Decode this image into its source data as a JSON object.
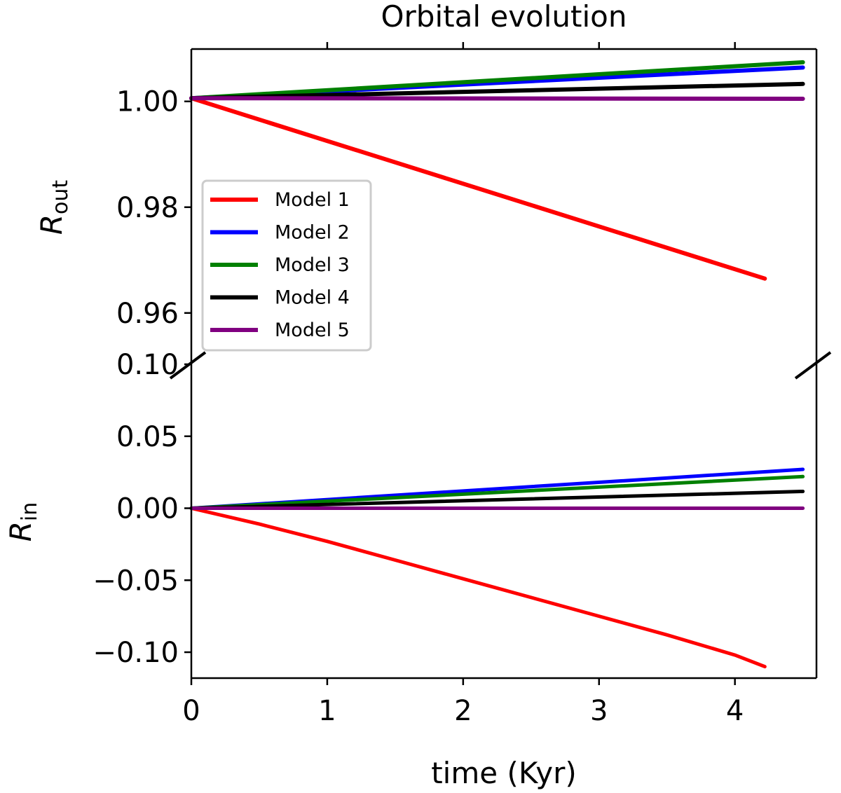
{
  "chart_data": {
    "type": "line",
    "title": "Orbital evolution",
    "xlabel": "time (Kyr)",
    "xlim": [
      0,
      4.6
    ],
    "xticks": [
      0,
      1,
      2,
      3,
      4
    ],
    "xtick_labels": [
      "0",
      "1",
      "2",
      "3",
      "4"
    ],
    "panels": [
      {
        "name": "top",
        "ylabel": "R",
        "ylabel_sub": "out",
        "ylim": [
          0.9503,
          1.0099
        ],
        "yticks": [
          1.0,
          0.98,
          0.96
        ],
        "ytick_labels": [
          "1.00",
          "0.98",
          "0.96"
        ],
        "series": [
          {
            "name": "Model 1",
            "color": "#ff0000",
            "x": [
              0,
              4.22
            ],
            "y": [
              1.0006,
              0.9665
            ]
          },
          {
            "name": "Model 2",
            "color": "#0000ff",
            "x": [
              0,
              4.5
            ],
            "y": [
              1.0006,
              1.0064
            ]
          },
          {
            "name": "Model 3",
            "color": "#008000",
            "x": [
              0,
              4.5
            ],
            "y": [
              1.0006,
              1.0074
            ]
          },
          {
            "name": "Model 4",
            "color": "#000000",
            "x": [
              0,
              4.5
            ],
            "y": [
              1.0006,
              1.0033
            ]
          },
          {
            "name": "Model 5",
            "color": "#800080",
            "x": [
              0,
              4.5
            ],
            "y": [
              1.0006,
              1.0005
            ]
          }
        ]
      },
      {
        "name": "bottom",
        "ylabel": "R",
        "ylabel_sub": "in",
        "ylim": [
          -0.118,
          0.1
        ],
        "yticks": [
          0.1,
          0.05,
          0.0,
          -0.05,
          -0.1
        ],
        "ytick_labels": [
          "0.10",
          "0.05",
          "0.00",
          "−0.05",
          "−0.10"
        ],
        "series": [
          {
            "name": "Model 1",
            "color": "#ff0000",
            "x": [
              0,
              0.5,
              1,
              1.5,
              2,
              2.5,
              3,
              3.5,
              4,
              4.22
            ],
            "y": [
              0,
              -0.011,
              -0.023,
              -0.036,
              -0.049,
              -0.062,
              -0.075,
              -0.088,
              -0.102,
              -0.11
            ]
          },
          {
            "name": "Model 2",
            "color": "#0000ff",
            "x": [
              0,
              4.5
            ],
            "y": [
              0,
              0.027
            ]
          },
          {
            "name": "Model 3",
            "color": "#008000",
            "x": [
              0,
              4.5
            ],
            "y": [
              0,
              0.022
            ]
          },
          {
            "name": "Model 4",
            "color": "#000000",
            "x": [
              0,
              4.5
            ],
            "y": [
              0,
              0.0117
            ]
          },
          {
            "name": "Model 5",
            "color": "#800080",
            "x": [
              0,
              4.5
            ],
            "y": [
              0,
              0.0
            ]
          }
        ]
      }
    ],
    "legend": {
      "placement": "center-left",
      "entries": [
        {
          "label": "Model 1",
          "color": "#ff0000"
        },
        {
          "label": "Model 2",
          "color": "#0000ff"
        },
        {
          "label": "Model 3",
          "color": "#008000"
        },
        {
          "label": "Model 4",
          "color": "#000000"
        },
        {
          "label": "Model 5",
          "color": "#800080"
        }
      ]
    }
  }
}
